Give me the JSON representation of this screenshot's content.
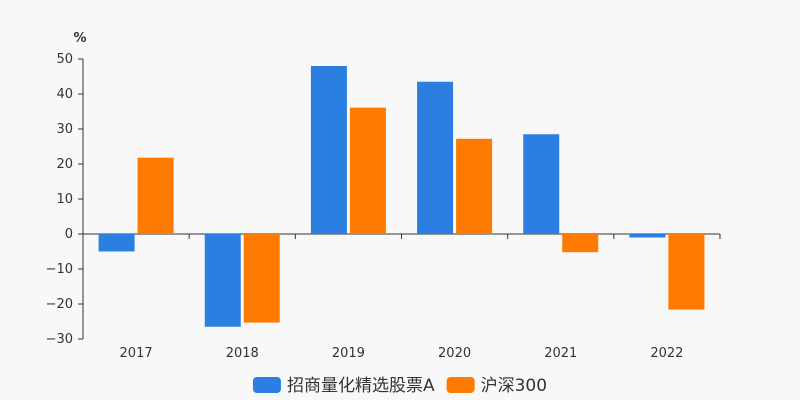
{
  "chart_data": {
    "type": "bar",
    "categories": [
      "2017",
      "2018",
      "2019",
      "2020",
      "2021",
      "2022"
    ],
    "series": [
      {
        "name": "招商量化精选股票A",
        "color": "#2b7fe0",
        "values": [
          -5,
          -26.5,
          48,
          43.5,
          28.5,
          -1
        ]
      },
      {
        "name": "沪深300",
        "color": "#ff7a00",
        "values": [
          21.8,
          -25.3,
          36.1,
          27.2,
          -5.2,
          -21.6
        ]
      }
    ],
    "yunit": "%",
    "ylim": [
      -30,
      50
    ],
    "yticks": [
      50,
      40,
      30,
      20,
      10,
      0,
      -10,
      -20,
      -30
    ],
    "ytick_labels": [
      "50",
      "40",
      "30",
      "20",
      "10",
      "0",
      "−10",
      "−20",
      "−30"
    ],
    "grid": false,
    "legend": "bottom-center"
  }
}
